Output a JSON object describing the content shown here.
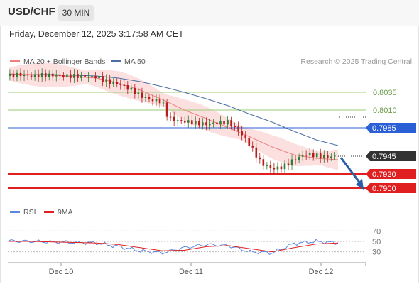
{
  "header": {
    "symbol": "USD/CHF",
    "timeframe": "30 MIN",
    "datetime": "Friday, December 12, 2025 3:17:58 AM CET"
  },
  "legend": {
    "ma20": "MA 20 + Bollinger Bands",
    "ma50": "MA 50",
    "copyright": "Research © 2025 Trading Central",
    "rsi": "RSI",
    "ma9": "9MA"
  },
  "colors": {
    "ma20": "#f08080",
    "bollinger_fill": "#fbd7d7",
    "ma50": "#4a6fa5",
    "resistance": "#9acd74",
    "pivot": "#2a5fd6",
    "support": "#e02020",
    "price_box": "#333333",
    "candle_up": "#2e7d32",
    "candle_down": "#b71c1c",
    "rsi": "#5b87e0",
    "rsi_ma": "#e02020"
  },
  "chart_data": [
    {
      "type": "line",
      "title": "",
      "x_ticks": [
        "Dec 10",
        "Dec 11",
        "Dec 12"
      ],
      "ylim": [
        0.789,
        0.8065
      ],
      "current_price": "0.7945",
      "levels": [
        {
          "label": "0.8035",
          "value": 0.8035,
          "kind": "resistance"
        },
        {
          "label": "0.8010",
          "value": 0.801,
          "kind": "resistance"
        },
        {
          "label": "0.7985",
          "value": 0.7985,
          "kind": "pivot"
        },
        {
          "label": "0.7920",
          "value": 0.792,
          "kind": "support"
        },
        {
          "label": "0.7900",
          "value": 0.79,
          "kind": "support"
        }
      ],
      "series": [
        {
          "name": "MA 20",
          "x": [
            0,
            8,
            16,
            24,
            32,
            40,
            48,
            56,
            64,
            72,
            80,
            88,
            96,
            104,
            112,
            120
          ],
          "values": [
            0.8061,
            0.806,
            0.8059,
            0.8057,
            0.8055,
            0.8048,
            0.8038,
            0.8025,
            0.801,
            0.7998,
            0.7985,
            0.7972,
            0.7958,
            0.7947,
            0.7942,
            0.794
          ]
        },
        {
          "name": "MA 50",
          "x": [
            0,
            8,
            16,
            24,
            32,
            40,
            48,
            56,
            64,
            72,
            80,
            88,
            96,
            104,
            112,
            120
          ],
          "values": [
            0.806,
            0.806,
            0.806,
            0.8059,
            0.8058,
            0.8055,
            0.805,
            0.8043,
            0.8035,
            0.8026,
            0.8016,
            0.8004,
            0.7993,
            0.798,
            0.7968,
            0.796
          ]
        },
        {
          "name": "Price",
          "x": [
            0,
            4,
            8,
            12,
            16,
            20,
            24,
            28,
            32,
            36,
            40,
            44,
            48,
            52,
            56,
            58,
            60,
            64,
            68,
            72,
            76,
            80,
            84,
            88,
            92,
            96,
            100,
            104,
            108,
            112,
            116,
            120
          ],
          "values": [
            0.8058,
            0.806,
            0.8058,
            0.8059,
            0.8059,
            0.8058,
            0.8058,
            0.8057,
            0.8057,
            0.805,
            0.8047,
            0.804,
            0.803,
            0.8024,
            0.8022,
            0.8,
            0.7996,
            0.7994,
            0.7992,
            0.799,
            0.7992,
            0.7993,
            0.798,
            0.796,
            0.7935,
            0.7927,
            0.793,
            0.794,
            0.7948,
            0.7946,
            0.7944,
            0.7945
          ]
        }
      ],
      "forecast_arrow": {
        "from": 0.7945,
        "to": 0.79
      }
    },
    {
      "type": "line",
      "title": "",
      "ylim": [
        20,
        80
      ],
      "y_ticks": [
        70,
        50,
        30
      ],
      "series": [
        {
          "name": "RSI",
          "x": [
            0,
            8,
            16,
            24,
            32,
            40,
            48,
            56,
            64,
            72,
            80,
            88,
            96,
            104,
            112,
            120
          ],
          "values": [
            51,
            50,
            49,
            48,
            47,
            40,
            32,
            28,
            38,
            44,
            42,
            30,
            28,
            46,
            50,
            47
          ]
        },
        {
          "name": "9MA",
          "x": [
            0,
            8,
            16,
            24,
            32,
            40,
            48,
            56,
            64,
            72,
            80,
            88,
            96,
            104,
            112,
            120
          ],
          "values": [
            50,
            50,
            49,
            48,
            47,
            44,
            38,
            32,
            33,
            40,
            42,
            36,
            30,
            38,
            45,
            47
          ]
        }
      ]
    }
  ]
}
